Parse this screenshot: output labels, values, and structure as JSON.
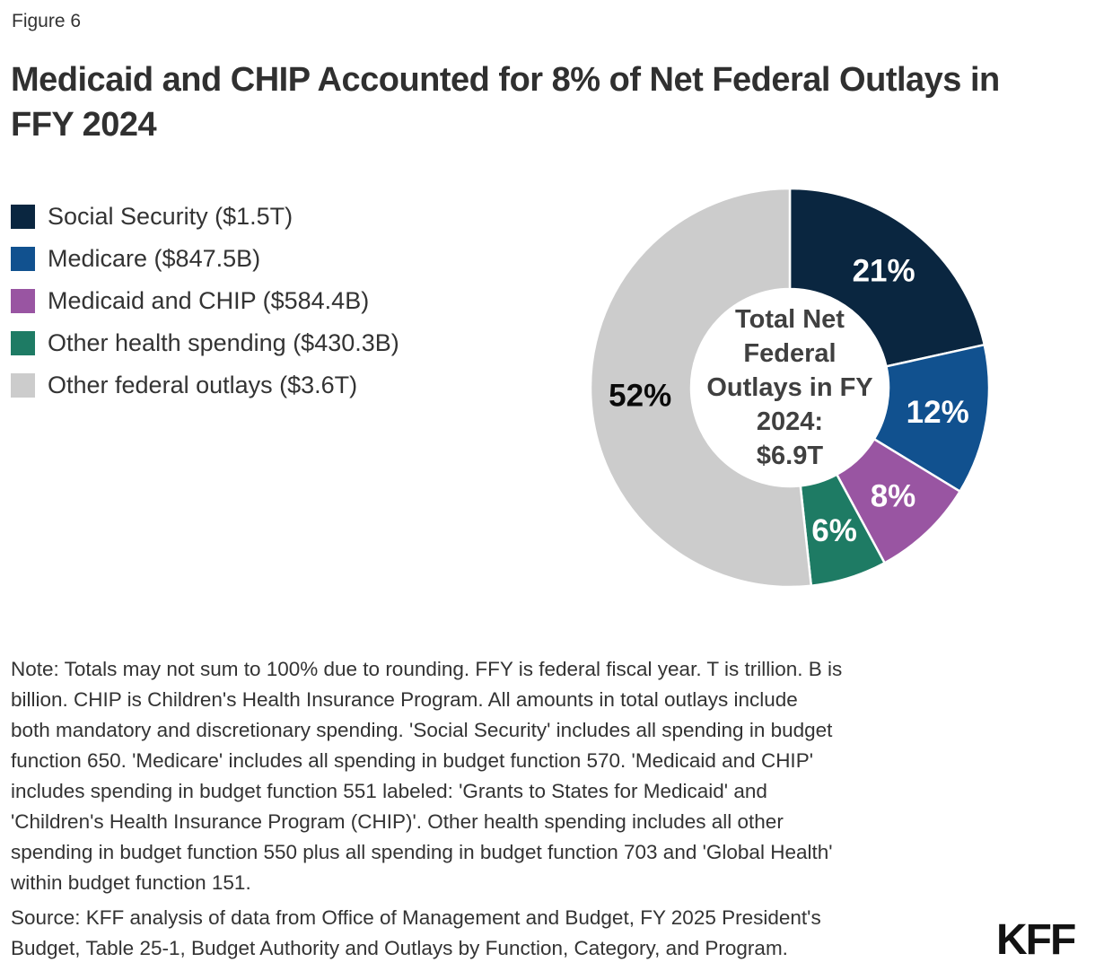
{
  "figure_label": "Figure 6",
  "title": "Medicaid and CHIP Accounted for 8% of Net Federal Outlays in\nFFY 2024",
  "chart_data": {
    "type": "pie",
    "subtype": "donut",
    "units": "billions USD",
    "total_value_label": "$6.9T",
    "center_label": "Total Net\nFederal\nOutlays in FY\n2024:\n$6.9T",
    "legend_position": "left",
    "slices": [
      {
        "id": "social-security",
        "name": "Social Security",
        "legend_label": "Social Security ($1.5T)",
        "value": 1500,
        "value_label": "$1.5T",
        "pct": 21,
        "pct_label": "21%",
        "color": "#0a2640",
        "label_color": "#ffffff"
      },
      {
        "id": "medicare",
        "name": "Medicare",
        "legend_label": "Medicare ($847.5B)",
        "value": 847.5,
        "value_label": "$847.5B",
        "pct": 12,
        "pct_label": "12%",
        "color": "#11518f",
        "label_color": "#ffffff"
      },
      {
        "id": "medicaid-chip",
        "name": "Medicaid and CHIP",
        "legend_label": "Medicaid and CHIP ($584.4B)",
        "value": 584.4,
        "value_label": "$584.4B",
        "pct": 8,
        "pct_label": "8%",
        "color": "#9955a2",
        "label_color": "#ffffff"
      },
      {
        "id": "other-health",
        "name": "Other health spending",
        "legend_label": "Other health spending ($430.3B)",
        "value": 430.3,
        "value_label": "$430.3B",
        "pct": 6,
        "pct_label": "6%",
        "color": "#1e7b64",
        "label_color": "#ffffff"
      },
      {
        "id": "other-federal",
        "name": "Other federal outlays",
        "legend_label": "Other federal outlays ($3.6T)",
        "value": 3600,
        "value_label": "$3.6T",
        "pct": 52,
        "pct_label": "52%",
        "color": "#cccccc",
        "label_color": "#0a0a0a"
      }
    ]
  },
  "note": "Note: Totals may not sum to 100% due to rounding. FFY is federal fiscal year. T is trillion. B is\nbillion. CHIP is Children's Health Insurance Program. All amounts in total outlays include\nboth mandatory and discretionary spending. 'Social Security' includes all spending in budget\nfunction 650. 'Medicare' includes all spending in budget function 570. 'Medicaid and CHIP'\nincludes spending in budget function 551 labeled: 'Grants to States for Medicaid' and\n'Children's Health Insurance Program (CHIP)'. Other health spending includes all other\nspending in budget function 550 plus all spending in budget function 703 and 'Global Health'\nwithin budget function 151.",
  "source": "Source: KFF analysis of data from Office of Management and Budget, FY 2025 President's\nBudget, Table 25-1, Budget Authority and Outlays by Function, Category, and Program.",
  "logo": "KFF"
}
